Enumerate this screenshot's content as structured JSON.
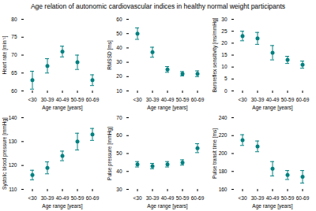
{
  "title": "Age relation of autonomic cardiovascular indices in healthy normal weight participants",
  "chart_data": [
    {
      "type": "errorbar",
      "ylabel": "Heart rate [min⁻¹]",
      "xlabel": "Age range [years]",
      "categories": [
        "<30",
        "30-39",
        "40-49",
        "50-59",
        "60-69"
      ],
      "values": [
        63,
        67,
        71,
        68,
        63
      ],
      "errors": [
        2.5,
        2.0,
        1.5,
        2.0,
        1.5
      ],
      "ylim": [
        60,
        80
      ],
      "yticks": [
        60,
        65,
        70,
        75,
        80
      ],
      "color": "#008080",
      "grid": false
    },
    {
      "type": "errorbar",
      "ylabel": "RMSSD [ms]",
      "xlabel": "Age range [years]",
      "categories": [
        "<30",
        "30-39",
        "40-49",
        "50-59",
        "60-69"
      ],
      "values": [
        50,
        37,
        25,
        22,
        22
      ],
      "errors": [
        4.0,
        3.5,
        2.0,
        1.5,
        2.0
      ],
      "ylim": [
        10,
        60
      ],
      "yticks": [
        10,
        20,
        30,
        40,
        50,
        60
      ],
      "color": "#008080",
      "grid": false
    },
    {
      "type": "errorbar",
      "ylabel": "Baroreflex sensitivity [ms/mmHg]",
      "xlabel": "Age range [years]",
      "categories": [
        "<30",
        "30-39",
        "40-49",
        "50-59",
        "60-69"
      ],
      "values": [
        23,
        22,
        16,
        13,
        11
      ],
      "errors": [
        2.0,
        2.5,
        3.0,
        1.5,
        1.5
      ],
      "ylim": [
        0,
        30
      ],
      "yticks": [
        0,
        5,
        10,
        15,
        20,
        25,
        30
      ],
      "color": "#008080",
      "grid": false
    },
    {
      "type": "errorbar",
      "ylabel": "Systolic blood pressure [mmHg]",
      "xlabel": "Age range [years]",
      "categories": [
        "<30",
        "30-39",
        "40-49",
        "50-59",
        "60-69"
      ],
      "values": [
        116,
        119,
        124,
        130,
        133
      ],
      "errors": [
        2.0,
        2.5,
        2.0,
        3.5,
        2.5
      ],
      "ylim": [
        110,
        140
      ],
      "yticks": [
        110,
        120,
        130,
        140
      ],
      "color": "#008080",
      "grid": false
    },
    {
      "type": "errorbar",
      "ylabel": "Pulse pressure [mmHg]",
      "xlabel": "Age range [years]",
      "categories": [
        "<30",
        "30-39",
        "40-49",
        "50-59",
        "60-69"
      ],
      "values": [
        44,
        43,
        44,
        45,
        53
      ],
      "errors": [
        1.5,
        1.5,
        1.5,
        1.5,
        2.5
      ],
      "ylim": [
        30,
        70
      ],
      "yticks": [
        30,
        40,
        50,
        60,
        70
      ],
      "color": "#008080",
      "grid": false
    },
    {
      "type": "errorbar",
      "ylabel": "Pulse transit time [ms]",
      "xlabel": "Age range [years]",
      "categories": [
        "<30",
        "30-39",
        "40-49",
        "50-59",
        "60-69"
      ],
      "values": [
        215,
        208,
        183,
        176,
        174
      ],
      "errors": [
        6.0,
        6.0,
        8.0,
        5.0,
        7.0
      ],
      "ylim": [
        160,
        240
      ],
      "yticks": [
        160,
        180,
        200,
        220,
        240
      ],
      "color": "#008080",
      "grid": false
    }
  ]
}
